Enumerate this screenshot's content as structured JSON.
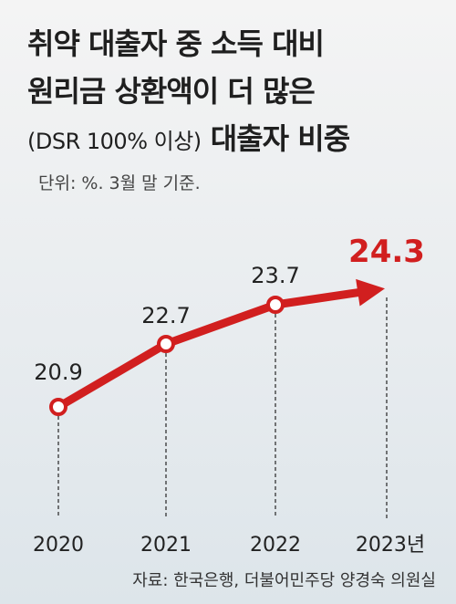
{
  "title": {
    "line1": "취약 대출자 중 소득 대비",
    "line2": "원리금 상환액이 더 많은",
    "line3_small": "(DSR 100% 이상)",
    "line3_bold": "대출자 비중"
  },
  "unit": "단위: %. 3월 말 기준.",
  "source": "자료: 한국은행, 더불어민주당 양경숙 의원실",
  "colors": {
    "line": "#d11f1f",
    "highlight": "#d11f1f"
  },
  "chart_data": {
    "type": "line",
    "categories": [
      "2020",
      "2021",
      "2022",
      "2023년"
    ],
    "values": [
      20.9,
      22.7,
      23.7,
      24.3
    ],
    "value_labels": [
      "20.9",
      "22.7",
      "23.7",
      "24.3"
    ],
    "highlight_last": true,
    "grid": false,
    "end_marker": "arrow"
  }
}
